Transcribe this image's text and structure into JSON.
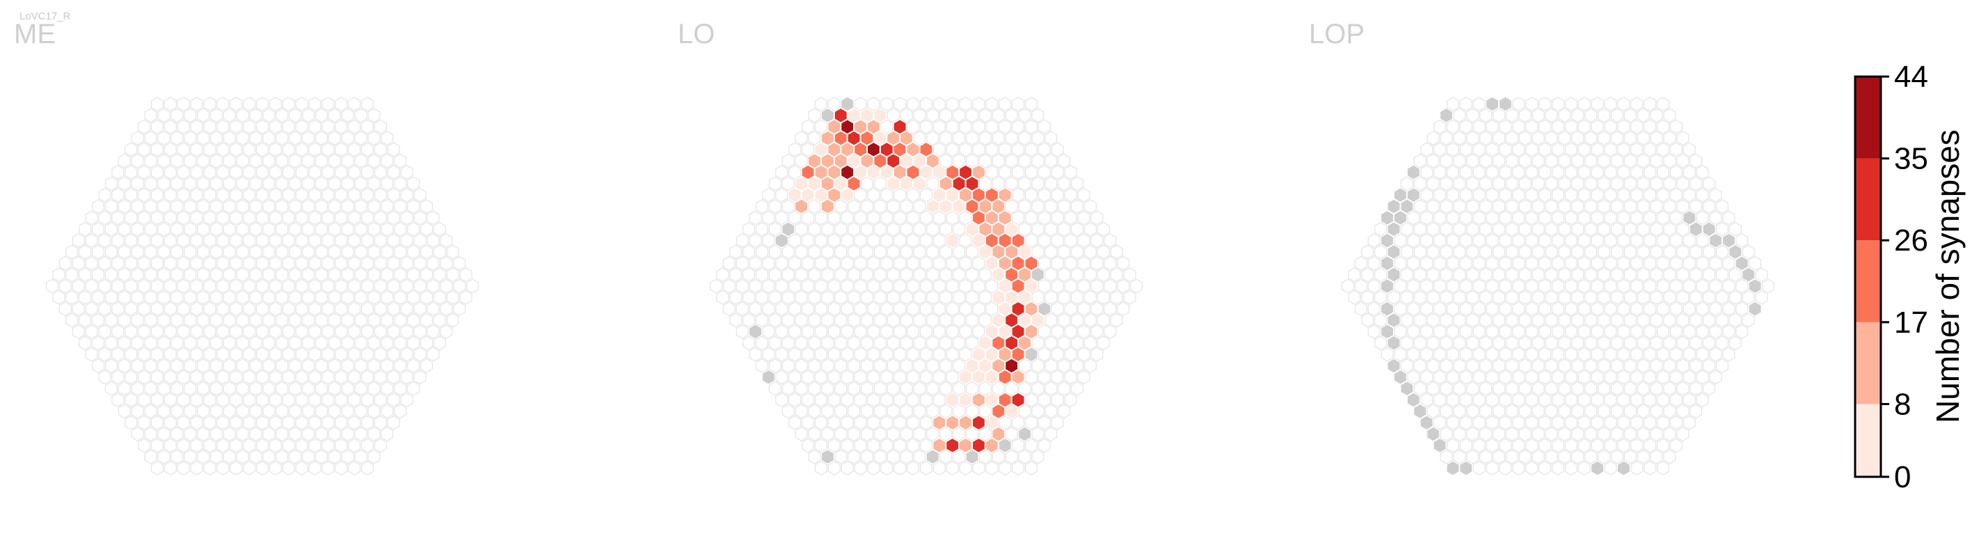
{
  "figure_label": "LoVC17_R",
  "chart_data": {
    "type": "heatmap",
    "panels": [
      {
        "title": "ME",
        "radius": 16,
        "data": [],
        "gray": []
      },
      {
        "title": "LO",
        "radius": 16,
        "data": [
          {
            "q": -6,
            "r": -8,
            "v": 2
          },
          {
            "q": -5,
            "r": -9,
            "v": 3
          },
          {
            "q": -4,
            "r": -10,
            "v": 20
          },
          {
            "q": -3,
            "r": -11,
            "v": 12
          },
          {
            "q": -2,
            "r": -12,
            "v": 3
          },
          {
            "q": -1,
            "r": -13,
            "v": 14
          },
          {
            "q": 0,
            "r": -14,
            "v": 9
          },
          {
            "q": 1,
            "r": -15,
            "v": 33
          },
          {
            "q": 2,
            "r": -15,
            "v": 5
          },
          {
            "q": 3,
            "r": -15,
            "v": 3
          },
          {
            "q": -6,
            "r": -7,
            "v": 12
          },
          {
            "q": -5,
            "r": -8,
            "v": 2
          },
          {
            "q": -4,
            "r": -9,
            "v": 4
          },
          {
            "q": -3,
            "r": -10,
            "v": 14
          },
          {
            "q": -2,
            "r": -11,
            "v": 11
          },
          {
            "q": -1,
            "r": -12,
            "v": 9
          },
          {
            "q": 0,
            "r": -13,
            "v": 20
          },
          {
            "q": 1,
            "r": -14,
            "v": 36
          },
          {
            "q": 2,
            "r": -14,
            "v": 9
          },
          {
            "q": 3,
            "r": -14,
            "v": 12
          },
          {
            "q": 4,
            "r": -15,
            "v": 4
          },
          {
            "q": -4,
            "r": -8,
            "v": 4
          },
          {
            "q": -3,
            "r": -9,
            "v": 9
          },
          {
            "q": -2,
            "r": -10,
            "v": 10
          },
          {
            "q": -1,
            "r": -11,
            "v": 17
          },
          {
            "q": 0,
            "r": -12,
            "v": 13
          },
          {
            "q": 1,
            "r": -13,
            "v": 30
          },
          {
            "q": 2,
            "r": -13,
            "v": 26
          },
          {
            "q": 3,
            "r": -13,
            "v": 8
          },
          {
            "q": 4,
            "r": -13,
            "v": 10
          },
          {
            "q": 5,
            "r": -14,
            "v": 33
          },
          {
            "q": -4,
            "r": -7,
            "v": 11
          },
          {
            "q": -3,
            "r": -8,
            "v": 14
          },
          {
            "q": -2,
            "r": -9,
            "v": 5
          },
          {
            "q": -1,
            "r": -10,
            "v": 44
          },
          {
            "q": 0,
            "r": -11,
            "v": 6
          },
          {
            "q": 1,
            "r": -12,
            "v": 22
          },
          {
            "q": 2,
            "r": -12,
            "v": 40
          },
          {
            "q": 3,
            "r": -12,
            "v": 31
          },
          {
            "q": 4,
            "r": -12,
            "v": 21
          },
          {
            "q": 5,
            "r": -13,
            "v": 14
          },
          {
            "q": -2,
            "r": -8,
            "v": 3
          },
          {
            "q": -1,
            "r": -9,
            "v": 19
          },
          {
            "q": 0,
            "r": -10,
            "v": 4
          },
          {
            "q": 1,
            "r": -11,
            "v": 12
          },
          {
            "q": 2,
            "r": -11,
            "v": 26
          },
          {
            "q": 3,
            "r": -11,
            "v": 33
          },
          {
            "q": 4,
            "r": -11,
            "v": 8
          },
          {
            "q": 5,
            "r": -12,
            "v": 14
          },
          {
            "q": 6,
            "r": -12,
            "v": 20
          },
          {
            "q": 1,
            "r": -10,
            "v": 4
          },
          {
            "q": 2,
            "r": -10,
            "v": 7
          },
          {
            "q": 3,
            "r": -10,
            "v": 9
          },
          {
            "q": 4,
            "r": -10,
            "v": 18
          },
          {
            "q": 5,
            "r": -11,
            "v": 4
          },
          {
            "q": 6,
            "r": -11,
            "v": 9
          },
          {
            "q": 2,
            "r": -9,
            "v": 3
          },
          {
            "q": 3,
            "r": -9,
            "v": 3
          },
          {
            "q": 4,
            "r": -9,
            "v": 2
          },
          {
            "q": 5,
            "r": -10,
            "v": 3
          },
          {
            "q": 6,
            "r": -10,
            "v": 6
          },
          {
            "q": 7,
            "r": -10,
            "v": 22
          },
          {
            "q": 6,
            "r": -9,
            "v": 11
          },
          {
            "q": 7,
            "r": -9,
            "v": 31
          },
          {
            "q": 8,
            "r": -10,
            "v": 33
          },
          {
            "q": 4,
            "r": -7,
            "v": 4
          },
          {
            "q": 5,
            "r": -8,
            "v": 6
          },
          {
            "q": 6,
            "r": -8,
            "v": 4
          },
          {
            "q": 7,
            "r": -8,
            "v": 10
          },
          {
            "q": 8,
            "r": -9,
            "v": 33
          },
          {
            "q": 9,
            "r": -10,
            "v": 12
          },
          {
            "q": 5,
            "r": -7,
            "v": 2
          },
          {
            "q": 6,
            "r": -7,
            "v": 7
          },
          {
            "q": 7,
            "r": -7,
            "v": 21
          },
          {
            "q": 8,
            "r": -8,
            "v": 22
          },
          {
            "q": 7,
            "r": -6,
            "v": 18
          },
          {
            "q": 8,
            "r": -7,
            "v": 14
          },
          {
            "q": 9,
            "r": -8,
            "v": 21
          },
          {
            "q": 4,
            "r": -4,
            "v": 3
          },
          {
            "q": 6,
            "r": -5,
            "v": 7
          },
          {
            "q": 7,
            "r": -5,
            "v": 11
          },
          {
            "q": 8,
            "r": -6,
            "v": 13
          },
          {
            "q": 9,
            "r": -7,
            "v": 17
          },
          {
            "q": 10,
            "r": -8,
            "v": 12
          },
          {
            "q": 6,
            "r": -4,
            "v": 3
          },
          {
            "q": 7,
            "r": -4,
            "v": 18
          },
          {
            "q": 8,
            "r": -5,
            "v": 15
          },
          {
            "q": 9,
            "r": -6,
            "v": 14
          },
          {
            "q": 6,
            "r": -3,
            "v": 4
          },
          {
            "q": 7,
            "r": -3,
            "v": 12
          },
          {
            "q": 8,
            "r": -4,
            "v": 19
          },
          {
            "q": 9,
            "r": -5,
            "v": 6
          },
          {
            "q": 6,
            "r": -2,
            "v": 5
          },
          {
            "q": 7,
            "r": -2,
            "v": 15
          },
          {
            "q": 8,
            "r": -3,
            "v": 11
          },
          {
            "q": 9,
            "r": -4,
            "v": 23
          },
          {
            "q": 6,
            "r": -1,
            "v": 4
          },
          {
            "q": 7,
            "r": -1,
            "v": 21
          },
          {
            "q": 8,
            "r": -2,
            "v": 24
          },
          {
            "q": 9,
            "r": -3,
            "v": 6
          },
          {
            "q": 6,
            "r": 0,
            "v": 2
          },
          {
            "q": 7,
            "r": 0,
            "v": 25
          },
          {
            "q": 8,
            "r": -1,
            "v": 14
          },
          {
            "q": 9,
            "r": -2,
            "v": 20
          },
          {
            "q": 5,
            "r": 1,
            "v": 4
          },
          {
            "q": 6,
            "r": 1,
            "v": 4
          },
          {
            "q": 7,
            "r": 1,
            "v": 3
          },
          {
            "q": 8,
            "r": 0,
            "v": 2
          },
          {
            "q": 5,
            "r": 2,
            "v": 2
          },
          {
            "q": 6,
            "r": 2,
            "v": 31
          },
          {
            "q": 7,
            "r": 2,
            "v": 12
          },
          {
            "q": 4,
            "r": 3,
            "v": 4
          },
          {
            "q": 5,
            "r": 3,
            "v": 28
          },
          {
            "q": 6,
            "r": 3,
            "v": 4
          },
          {
            "q": 7,
            "r": 3,
            "v": 2
          },
          {
            "q": 3,
            "r": 4,
            "v": 3
          },
          {
            "q": 4,
            "r": 4,
            "v": 8
          },
          {
            "q": 5,
            "r": 4,
            "v": 33
          },
          {
            "q": 6,
            "r": 4,
            "v": 12
          },
          {
            "q": 2,
            "r": 5,
            "v": 3
          },
          {
            "q": 3,
            "r": 5,
            "v": 24
          },
          {
            "q": 4,
            "r": 5,
            "v": 30
          },
          {
            "q": 5,
            "r": 5,
            "v": 14
          },
          {
            "q": 1,
            "r": 6,
            "v": 2
          },
          {
            "q": 2,
            "r": 6,
            "v": 3
          },
          {
            "q": 3,
            "r": 6,
            "v": 11
          },
          {
            "q": 4,
            "r": 6,
            "v": 26
          },
          {
            "q": 5,
            "r": 6,
            "v": 9
          },
          {
            "q": 0,
            "r": 7,
            "v": 3
          },
          {
            "q": 1,
            "r": 7,
            "v": 5
          },
          {
            "q": 2,
            "r": 7,
            "v": 12
          },
          {
            "q": 3,
            "r": 7,
            "v": 36
          },
          {
            "q": -1,
            "r": 8,
            "v": 2
          },
          {
            "q": 0,
            "r": 8,
            "v": 4
          },
          {
            "q": 1,
            "r": 8,
            "v": 4
          },
          {
            "q": 2,
            "r": 8,
            "v": 20
          },
          {
            "q": 3,
            "r": 8,
            "v": 15
          },
          {
            "q": -3,
            "r": 10,
            "v": 5
          },
          {
            "q": -2,
            "r": 10,
            "v": 3
          },
          {
            "q": -1,
            "r": 10,
            "v": 9
          },
          {
            "q": 0,
            "r": 10,
            "v": 8
          },
          {
            "q": 1,
            "r": 10,
            "v": 23
          },
          {
            "q": 2,
            "r": 10,
            "v": 30
          },
          {
            "q": -5,
            "r": 12,
            "v": 13
          },
          {
            "q": -4,
            "r": 12,
            "v": 16
          },
          {
            "q": -3,
            "r": 12,
            "v": 9
          },
          {
            "q": -2,
            "r": 12,
            "v": 34
          },
          {
            "q": -1,
            "r": 12,
            "v": 5
          },
          {
            "q": 0,
            "r": 11,
            "v": 26
          },
          {
            "q": 1,
            "r": 11,
            "v": 7
          },
          {
            "q": -6,
            "r": 14,
            "v": 15
          },
          {
            "q": -5,
            "r": 14,
            "v": 33
          },
          {
            "q": -4,
            "r": 14,
            "v": 12
          },
          {
            "q": -3,
            "r": 14,
            "v": 31
          },
          {
            "q": -2,
            "r": 14,
            "v": 17
          },
          {
            "q": -1,
            "r": 13,
            "v": 12
          }
        ],
        "gray": [
          {
            "q": 0,
            "r": -15
          },
          {
            "q": 2,
            "r": -16
          },
          {
            "q": -8,
            "r": -5
          },
          {
            "q": -9,
            "r": -4
          },
          {
            "q": -15,
            "r": 4
          },
          {
            "q": -16,
            "r": 8
          },
          {
            "q": -15,
            "r": 15
          },
          {
            "q": 9,
            "r": -1
          },
          {
            "q": 8,
            "r": 2
          },
          {
            "q": 5,
            "r": 6
          },
          {
            "q": -7,
            "r": 15
          },
          {
            "q": -4,
            "r": 15
          },
          {
            "q": -1,
            "r": 14
          },
          {
            "q": 1,
            "r": 13
          }
        ]
      },
      {
        "title": "LOP",
        "radius": 16,
        "data": [],
        "gray": [
          {
            "q": -6,
            "r": -10
          },
          {
            "q": -1,
            "r": -15
          },
          {
            "q": 3,
            "r": -16
          },
          {
            "q": 4,
            "r": -16
          },
          {
            "q": -7,
            "r": -8
          },
          {
            "q": -8,
            "r": -7
          },
          {
            "q": -8,
            "r": -8
          },
          {
            "q": -9,
            "r": -6
          },
          {
            "q": -9,
            "r": -7
          },
          {
            "q": -10,
            "r": -5
          },
          {
            "q": -10,
            "r": -6
          },
          {
            "q": -11,
            "r": -4
          },
          {
            "q": -11,
            "r": -3
          },
          {
            "q": -12,
            "r": -2
          },
          {
            "q": -12,
            "r": -1
          },
          {
            "q": -13,
            "r": 0
          },
          {
            "q": -14,
            "r": 2
          },
          {
            "q": -14,
            "r": 3
          },
          {
            "q": -15,
            "r": 4
          },
          {
            "q": -15,
            "r": 5
          },
          {
            "q": -16,
            "r": 7
          },
          {
            "q": -16,
            "r": 8
          },
          {
            "q": -16,
            "r": 9
          },
          {
            "q": -16,
            "r": 10
          },
          {
            "q": -16,
            "r": 11
          },
          {
            "q": -16,
            "r": 12
          },
          {
            "q": -16,
            "r": 13
          },
          {
            "q": -16,
            "r": 14
          },
          {
            "q": -16,
            "r": 16
          },
          {
            "q": -15,
            "r": 16
          },
          {
            "q": -15,
            "r": 17
          },
          {
            "q": -14,
            "r": 17
          },
          {
            "q": -14,
            "r": 18
          },
          {
            "q": -13,
            "r": 18
          },
          {
            "q": -12,
            "r": 18
          },
          {
            "q": -11,
            "r": 18
          },
          {
            "q": -10,
            "r": 18
          },
          {
            "q": -8,
            "r": 18
          },
          {
            "q": -7,
            "r": 17
          },
          {
            "q": -5,
            "r": 16
          },
          {
            "q": -3,
            "r": 16
          },
          {
            "q": 13,
            "r": -6
          },
          {
            "q": 13,
            "r": -5
          },
          {
            "q": 14,
            "r": -5
          },
          {
            "q": 14,
            "r": -4
          },
          {
            "q": 15,
            "r": -4
          },
          {
            "q": 15,
            "r": -3
          },
          {
            "q": 15,
            "r": -2
          },
          {
            "q": 15,
            "r": -1
          },
          {
            "q": 15,
            "r": 0
          },
          {
            "q": 14,
            "r": 2
          },
          {
            "q": 14,
            "r": 3
          },
          {
            "q": 13,
            "r": 4
          },
          {
            "q": 13,
            "r": 5
          },
          {
            "q": 12,
            "r": 6
          },
          {
            "q": 11,
            "r": 7
          },
          {
            "q": 10,
            "r": 8
          },
          {
            "q": 9,
            "r": 9
          },
          {
            "q": 7,
            "r": 11
          },
          {
            "q": 6,
            "r": 12
          },
          {
            "q": 5,
            "r": 13
          }
        ]
      }
    ],
    "colorbar": {
      "label": "Number of synapses",
      "ticks": [
        "0",
        "8",
        "17",
        "26",
        "35",
        "44"
      ],
      "range": [
        0,
        44
      ],
      "bins": [
        0,
        8,
        17,
        26,
        35,
        44
      ],
      "colors": [
        "#fde9e0",
        "#fcb49b",
        "#fb7356",
        "#de2d26",
        "#a50f15"
      ]
    },
    "colors": {
      "empty_stroke": "#e4e4e4",
      "gray_fill": "#cdcdcd",
      "title": "#cfcfcf"
    }
  }
}
